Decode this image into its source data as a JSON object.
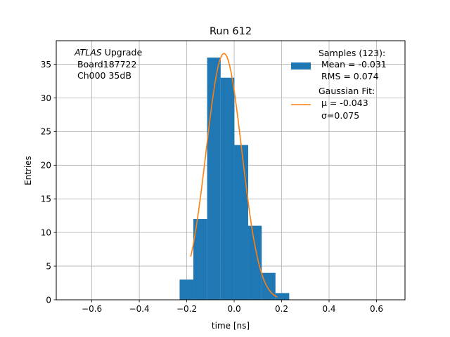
{
  "chart_data": {
    "type": "bar",
    "title": "Run 612",
    "xlabel": "time [ns]",
    "ylabel": "Entries",
    "xlim": [
      -0.75,
      0.72
    ],
    "ylim": [
      0,
      38.5
    ],
    "xticks": [
      -0.6,
      -0.4,
      -0.2,
      0.0,
      0.2,
      0.4,
      0.6
    ],
    "xtick_labels": [
      "−0.6",
      "−0.4",
      "−0.2",
      "0.0",
      "0.2",
      "0.4",
      "0.6"
    ],
    "yticks": [
      0,
      5,
      10,
      15,
      20,
      25,
      30,
      35
    ],
    "ytick_labels": [
      "0",
      "5",
      "10",
      "15",
      "20",
      "25",
      "30",
      "35"
    ],
    "grid": true,
    "histogram": {
      "bin_edges": [
        -0.23,
        -0.172,
        -0.114,
        -0.057,
        0.001,
        0.059,
        0.116,
        0.174,
        0.232
      ],
      "counts": [
        3,
        12,
        36,
        33,
        23,
        11,
        4,
        1
      ],
      "color": "#1f77b4"
    },
    "fit": {
      "amplitude": 36.6,
      "mu": -0.043,
      "sigma": 0.075,
      "x_range": [
        -0.183,
        0.182
      ],
      "color": "#ff7f0e"
    },
    "legend": {
      "placement": "upper right",
      "samples_lines": [
        "Samples (123):",
        " Mean = -0.031",
        " RMS = 0.074"
      ],
      "fit_lines": [
        "Gaussian Fit:",
        "μ = -0.043",
        "σ=0.075"
      ]
    },
    "annotation": {
      "italic": "ATLAS",
      "rest": " Upgrade",
      "line2": "Board187722",
      "line3": "Ch000 35dB"
    }
  }
}
